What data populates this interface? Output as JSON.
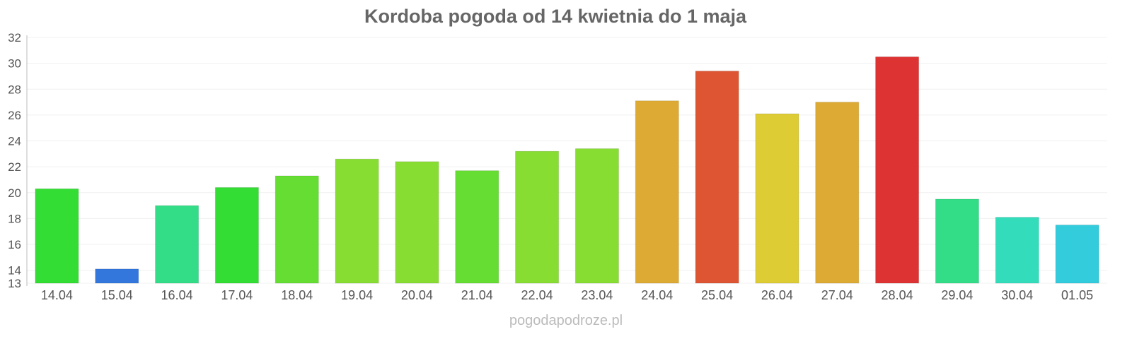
{
  "chart_data": {
    "type": "bar",
    "title": "Kordoba pogoda od 14 kwietnia do 1 maja",
    "categories": [
      "14.04",
      "15.04",
      "16.04",
      "17.04",
      "18.04",
      "19.04",
      "20.04",
      "21.04",
      "22.04",
      "23.04",
      "24.04",
      "25.04",
      "26.04",
      "27.04",
      "28.04",
      "29.04",
      "30.04",
      "01.05"
    ],
    "values": [
      20.3,
      14.1,
      19.0,
      20.4,
      21.3,
      22.6,
      22.4,
      21.7,
      23.2,
      23.4,
      27.1,
      29.4,
      26.1,
      27.0,
      30.5,
      19.5,
      18.1,
      17.5
    ],
    "colors": [
      "#33dd33",
      "#3377dd",
      "#33dd88",
      "#33dd33",
      "#66dd33",
      "#88dd33",
      "#88dd33",
      "#66dd33",
      "#88dd33",
      "#88dd33",
      "#ddaa33",
      "#dd5533",
      "#ddcc33",
      "#ddaa33",
      "#dd3333",
      "#33dd88",
      "#33ddbb",
      "#33ccdd"
    ],
    "yticks": [
      13,
      14,
      16,
      18,
      20,
      22,
      24,
      26,
      28,
      30,
      32
    ],
    "ylim": [
      13,
      32
    ],
    "xlabel": "",
    "ylabel": "",
    "grid": true
  },
  "credit": "pogodapodroze.pl"
}
